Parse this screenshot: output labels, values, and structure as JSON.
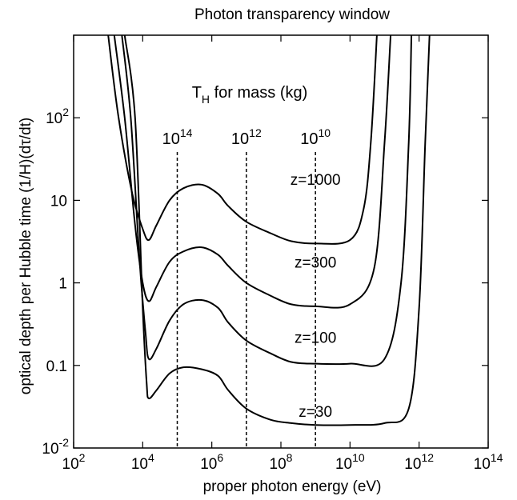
{
  "chart_data": {
    "type": "line",
    "title": "Photon transparency window",
    "xlabel": "proper photon energy (eV)",
    "ylabel": "optical depth per Hubble time (1/H)(dτ/dt)",
    "x_scale": "log",
    "y_scale": "log",
    "xlim": [
      100,
      100000000000000
    ],
    "ylim": [
      0.01,
      1000
    ],
    "grid": false,
    "x_ticks": [
      {
        "value": 100,
        "base": "10",
        "exp": "2"
      },
      {
        "value": 10000,
        "base": "10",
        "exp": "4"
      },
      {
        "value": 1000000,
        "base": "10",
        "exp": "6"
      },
      {
        "value": 100000000,
        "base": "10",
        "exp": "8"
      },
      {
        "value": 10000000000,
        "base": "10",
        "exp": "10"
      },
      {
        "value": 1000000000000,
        "base": "10",
        "exp": "12"
      },
      {
        "value": 100000000000000,
        "base": "10",
        "exp": "14"
      }
    ],
    "y_ticks": [
      {
        "value": 0.01,
        "base": "10",
        "exp": "-2"
      },
      {
        "value": 0.1,
        "text": "0.1"
      },
      {
        "value": 1,
        "text": "1"
      },
      {
        "value": 10,
        "text": "10"
      },
      {
        "value": 100,
        "base": "10",
        "exp": "2"
      }
    ],
    "series": [
      {
        "name": "z=1000",
        "label_at": [
          1000000000,
          18
        ],
        "points": [
          [
            1000,
            1000
          ],
          [
            2000,
            100
          ],
          [
            5000,
            12
          ],
          [
            10000,
            4.5
          ],
          [
            15000,
            3.3
          ],
          [
            25000,
            5
          ],
          [
            60000,
            10
          ],
          [
            150000,
            14
          ],
          [
            500000,
            15.5
          ],
          [
            1500000,
            12
          ],
          [
            3000000,
            8.5
          ],
          [
            10000000,
            5.5
          ],
          [
            50000000,
            4
          ],
          [
            200000000,
            3.2
          ],
          [
            1000000000,
            3.0
          ],
          [
            10000000000,
            3.3
          ],
          [
            25000000000,
            8
          ],
          [
            40000000000,
            50
          ],
          [
            60000000000,
            1000
          ]
        ]
      },
      {
        "name": "z=300",
        "label_at": [
          1000000000,
          1.8
        ],
        "points": [
          [
            1500,
            1000
          ],
          [
            3000,
            100
          ],
          [
            6000,
            5
          ],
          [
            10000,
            1
          ],
          [
            15000,
            0.6
          ],
          [
            25000,
            0.9
          ],
          [
            60000,
            1.8
          ],
          [
            150000,
            2.4
          ],
          [
            500000,
            2.7
          ],
          [
            1500000,
            2.2
          ],
          [
            3000000,
            1.6
          ],
          [
            10000000,
            1.0
          ],
          [
            50000000,
            0.7
          ],
          [
            200000000,
            0.55
          ],
          [
            1000000000,
            0.52
          ],
          [
            10000000000,
            0.55
          ],
          [
            50000000000,
            1.5
          ],
          [
            100000000000,
            50
          ],
          [
            150000000000,
            1000
          ]
        ]
      },
      {
        "name": "z=100",
        "label_at": [
          1000000000,
          0.22
        ],
        "points": [
          [
            2500,
            1000
          ],
          [
            4500,
            100
          ],
          [
            8000,
            2
          ],
          [
            12000,
            0.25
          ],
          [
            15000,
            0.12
          ],
          [
            25000,
            0.16
          ],
          [
            60000,
            0.35
          ],
          [
            150000,
            0.55
          ],
          [
            500000,
            0.62
          ],
          [
            1500000,
            0.5
          ],
          [
            3000000,
            0.33
          ],
          [
            10000000,
            0.2
          ],
          [
            50000000,
            0.14
          ],
          [
            200000000,
            0.11
          ],
          [
            1000000000,
            0.105
          ],
          [
            10000000000,
            0.105
          ],
          [
            100000000000,
            0.12
          ],
          [
            300000000000,
            1
          ],
          [
            500000000000,
            50
          ],
          [
            600000000000,
            1000
          ]
        ]
      },
      {
        "name": "z=30",
        "label_at": [
          1000000000,
          0.028
        ],
        "points": [
          [
            3000,
            1000
          ],
          [
            6000,
            100
          ],
          [
            10000,
            0.5
          ],
          [
            13000,
            0.06
          ],
          [
            15000,
            0.04
          ],
          [
            25000,
            0.05
          ],
          [
            60000,
            0.08
          ],
          [
            150000,
            0.095
          ],
          [
            500000,
            0.09
          ],
          [
            1500000,
            0.075
          ],
          [
            3000000,
            0.05
          ],
          [
            10000000,
            0.03
          ],
          [
            50000000,
            0.022
          ],
          [
            200000000,
            0.02
          ],
          [
            1000000000,
            0.019
          ],
          [
            10000000000,
            0.019
          ],
          [
            100000000000,
            0.02
          ],
          [
            500000000000,
            0.03
          ],
          [
            1000000000000,
            0.5
          ],
          [
            1500000000000,
            50
          ],
          [
            2000000000000,
            1000
          ]
        ]
      }
    ],
    "annotations": {
      "th_label": "for mass (kg)",
      "th_symbol": "T",
      "th_sub": "H",
      "mass_lines": [
        {
          "x": 100000,
          "base": "10",
          "exp": "14"
        },
        {
          "x": 10000000,
          "base": "10",
          "exp": "12"
        },
        {
          "x": 1000000000,
          "base": "10",
          "exp": "10"
        }
      ]
    }
  }
}
